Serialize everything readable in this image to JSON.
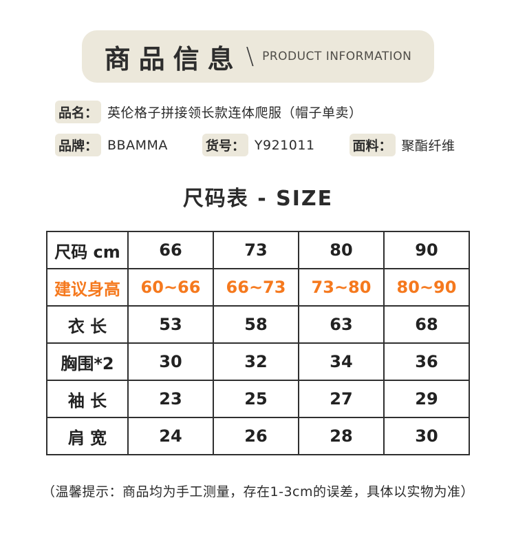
{
  "header": {
    "title_cn": "商品信息",
    "separator": "\\",
    "title_en": "PRODUCT INFORMATION"
  },
  "product": {
    "name_label": "品名：",
    "name_value": "英伦格子拼接领长款连体爬服（帽子单卖）",
    "brand_label": "品牌：",
    "brand_value": "BBAMMA",
    "sku_label": "货号：",
    "sku_value": "Y921011",
    "fabric_label": "面料：",
    "fabric_value": "聚酯纤维"
  },
  "size_section": {
    "title": "尺码表 - SIZE"
  },
  "size_table": {
    "header": [
      "尺码 cm",
      "66",
      "73",
      "80",
      "90"
    ],
    "rows": [
      {
        "label": "建议身高",
        "values": [
          "60~66",
          "66~73",
          "73~80",
          "80~90"
        ],
        "highlight": true
      },
      {
        "label": "衣 长",
        "values": [
          "53",
          "58",
          "63",
          "68"
        ],
        "highlight": false
      },
      {
        "label": "胸围*2",
        "values": [
          "30",
          "32",
          "34",
          "36"
        ],
        "highlight": false
      },
      {
        "label": "袖 长",
        "values": [
          "23",
          "25",
          "27",
          "29"
        ],
        "highlight": false
      },
      {
        "label": "肩 宽",
        "values": [
          "24",
          "26",
          "28",
          "30"
        ],
        "highlight": false
      }
    ]
  },
  "footer": {
    "note": "（温馨提示：商品均为手工测量，存在1-3cm的误差，具体以实物为准）"
  },
  "colors": {
    "beige": "#ece8db",
    "highlight_orange": "#f5791e",
    "text_dark": "#2b2b2b",
    "table_border": "#2f2f2f"
  }
}
